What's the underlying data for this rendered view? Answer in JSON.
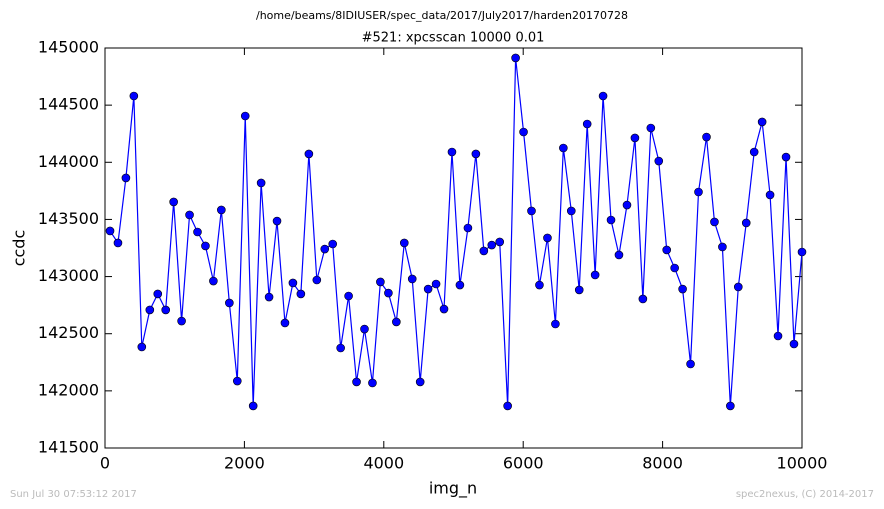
{
  "chart_data": {
    "type": "line",
    "suptitle": "/home/beams/8IDIUSER/spec_data/2017/July2017/harden20170728",
    "title": "#521: xpcsscan 10000 0.01",
    "xlabel": "img_n",
    "ylabel": "ccdc",
    "footer_left": "Sun Jul 30 07:53:12 2017",
    "footer_right": "spec2nexus, (C) 2014-2017",
    "xlim": [
      0,
      10000
    ],
    "xticks": [
      0,
      2000,
      4000,
      6000,
      8000,
      10000
    ],
    "ylim": [
      141500,
      145000
    ],
    "yticks": [
      141500,
      142000,
      142500,
      143000,
      143500,
      144000,
      144500,
      145000
    ],
    "x": [
      72,
      186,
      300,
      414,
      528,
      643,
      757,
      871,
      985,
      1099,
      1213,
      1327,
      1441,
      1555,
      1669,
      1784,
      1898,
      2012,
      2126,
      2240,
      2354,
      2468,
      2582,
      2696,
      2810,
      2925,
      3039,
      3153,
      3267,
      3381,
      3495,
      3609,
      3723,
      3837,
      3951,
      4066,
      4180,
      4294,
      4408,
      4522,
      4636,
      4750,
      4864,
      4978,
      5092,
      5207,
      5321,
      5435,
      5549,
      5663,
      5777,
      5891,
      6005,
      6119,
      6233,
      6348,
      6462,
      6576,
      6690,
      6804,
      6918,
      7032,
      7146,
      7260,
      7374,
      7489,
      7603,
      7717,
      7831,
      7945,
      8059,
      8173,
      8287,
      8401,
      8515,
      8630,
      8744,
      8858,
      8972,
      9086,
      9200,
      9314,
      9428,
      9542,
      9656,
      9771,
      9885,
      10000
    ],
    "series": [
      {
        "name": "ccdc",
        "color": "#0000ff",
        "values": [
          143399,
          143294,
          143863,
          144580,
          142384,
          142708,
          142848,
          142708,
          143653,
          142611,
          143539,
          143390,
          143268,
          142961,
          143583,
          142769,
          142086,
          144405,
          141868,
          143819,
          142821,
          143486,
          142594,
          142944,
          142848,
          144073,
          142970,
          143241,
          143285,
          142375,
          142830,
          142078,
          142541,
          142069,
          142953,
          142856,
          142603,
          143294,
          142979,
          142078,
          142891,
          142935,
          142716,
          144090,
          142926,
          143425,
          144073,
          143224,
          143276,
          143303,
          141868,
          144913,
          144265,
          143574,
          142926,
          143338,
          142585,
          144125,
          143574,
          142883,
          144335,
          143014,
          144580,
          143495,
          143189,
          143626,
          144213,
          142804,
          144300,
          144011,
          143233,
          143075,
          142891,
          142235,
          143740,
          144221,
          143478,
          143259,
          141868,
          142909,
          143469,
          144090,
          144353,
          143714,
          142480,
          144046,
          142410,
          143215
        ]
      }
    ]
  }
}
